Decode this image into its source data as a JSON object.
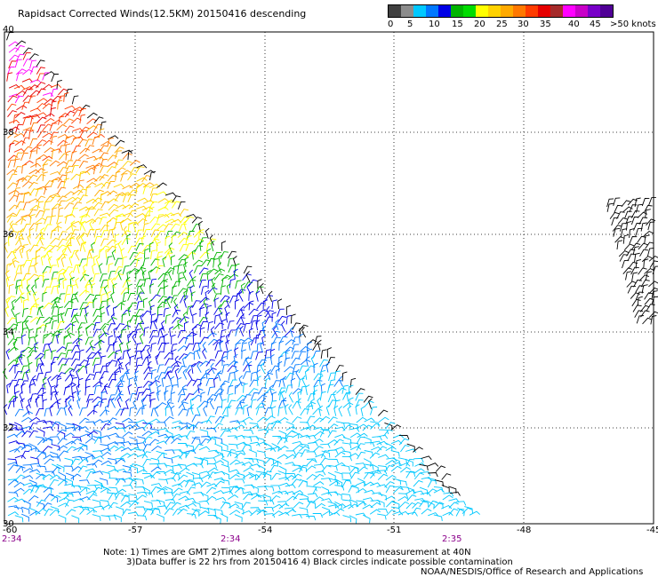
{
  "title": "Rapidsact Corrected Winds(12.5KM) 20150416 descending",
  "legend": {
    "labels": [
      "0",
      "5",
      "10",
      "15",
      "20",
      "25",
      "30",
      "35",
      "40",
      "45",
      ">50 knots"
    ],
    "colors": [
      "#404040",
      "#8c8c8c",
      "#00c8ff",
      "#0078ff",
      "#0000e6",
      "#00b400",
      "#00dc00",
      "#ffff00",
      "#ffd200",
      "#ffaa00",
      "#ff7800",
      "#ff3c00",
      "#e60000",
      "#a52a2a",
      "#ff00ff",
      "#c800c8",
      "#7800c8",
      "#500096"
    ]
  },
  "map": {
    "lon_labels": [
      "-60",
      "-57",
      "-54",
      "-51",
      "-48",
      "-45"
    ],
    "lat_labels": [
      "40",
      "38",
      "36",
      "34",
      "32",
      "30"
    ],
    "time_labels": [
      "2:34",
      "2:34",
      "2:35"
    ],
    "time_color": "#8b008b",
    "grid": "dotted"
  },
  "notes": {
    "line1": "Note: 1) Times are GMT 2)Times along bottom correspond to measurement at 40N",
    "line2": "3)Data buffer is 22 hrs from 20150416 4) Black circles indicate possible contamination",
    "credit": "NOAA/NESDIS/Office of Research and Applications"
  }
}
